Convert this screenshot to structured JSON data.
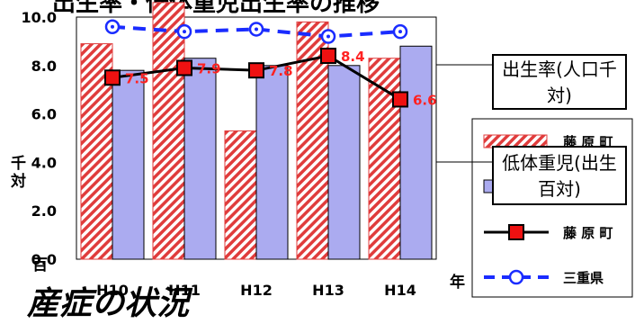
{
  "chart_data": {
    "type": "bar",
    "title": "出生率・低体重児出生率の推移",
    "categories": [
      "H10",
      "H11",
      "H12",
      "H13",
      "H14"
    ],
    "ylim": [
      0,
      10
    ],
    "yticks": [
      "0.0",
      "2.0",
      "4.0",
      "6.0",
      "8.0",
      "10.0"
    ],
    "ylabel": "千対",
    "ylabel2": "百",
    "xlabel": "年",
    "grid": false,
    "series": [
      {
        "name": "藤 原 町",
        "kind": "bar",
        "values": [
          8.9,
          11.0,
          5.3,
          9.8,
          8.3
        ],
        "pattern": "red-diagonal-hatch"
      },
      {
        "name": "三重県",
        "kind": "bar",
        "values": [
          7.8,
          8.3,
          8.0,
          8.0,
          8.8
        ],
        "color": "#ababf0"
      },
      {
        "name": "藤 原 町",
        "kind": "line",
        "values": [
          7.5,
          7.9,
          7.8,
          8.4,
          6.6
        ],
        "labels": [
          "7.5",
          "7.9",
          "7.8",
          "8.4",
          "6.6"
        ],
        "color": "#000000",
        "marker": "square-red"
      },
      {
        "name": "三重県",
        "kind": "line",
        "values": [
          9.6,
          9.4,
          9.5,
          9.2,
          9.4
        ],
        "color": "#1a2cff",
        "marker": "circle-open",
        "dashed": true
      }
    ],
    "legend": [
      {
        "label": "藤 原 町",
        "symbol": "bar-hatch"
      },
      {
        "label": "三重県",
        "symbol": "bar-blue"
      },
      {
        "label": "藤 原 町",
        "symbol": "line-square"
      },
      {
        "label": "三重県",
        "symbol": "line-dash-circle"
      }
    ],
    "callouts": [
      "出生率(人口千対)",
      "低体重児(出生百対)"
    ],
    "colors": {
      "hatch": "#e03c3c",
      "bar_blue": "#ababf0",
      "dashed_line": "#1a2cff",
      "marker_red": "#ee1111",
      "label_red": "#ff2222"
    }
  },
  "overlay_text": "産症の状況"
}
